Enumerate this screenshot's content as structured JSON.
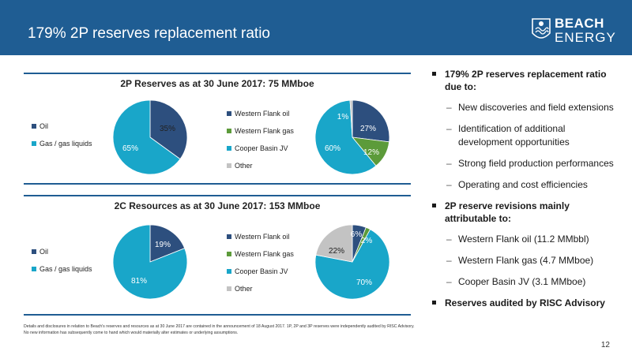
{
  "header": {
    "title": "179% 2P reserves replacement ratio"
  },
  "logo": {
    "word1": "BEACH",
    "word2": "ENERGY"
  },
  "colors": {
    "header_blue": "#1f5d93",
    "navy": "#2d4f7e",
    "teal": "#19a6c9",
    "green": "#5c9b3a",
    "grey": "#c3c3c3"
  },
  "reserves": {
    "title": "2P Reserves as at 30 June 2017: 75 MMboe",
    "left_legend": [
      "Oil",
      "Gas / gas liquids"
    ],
    "right_legend": [
      "Western Flank oil",
      "Western Flank gas",
      "Cooper Basin JV",
      "Other"
    ]
  },
  "resources": {
    "title": "2C Resources as at 30 June 2017: 153 MMboe",
    "left_legend": [
      "Oil",
      "Gas / gas liquids"
    ],
    "right_legend": [
      "Western Flank oil",
      "Western Flank gas",
      "Cooper Basin JV",
      "Other"
    ]
  },
  "chart_data": [
    {
      "type": "pie",
      "title": "2P Reserves as at 30 June 2017: 75 MMboe",
      "categories": [
        "Oil",
        "Gas / gas liquids"
      ],
      "values": [
        35,
        65
      ],
      "labels": [
        "35%",
        "65%"
      ]
    },
    {
      "type": "pie",
      "title": "2P Reserves as at 30 June 2017: 75 MMboe",
      "categories": [
        "Western Flank oil",
        "Western Flank gas",
        "Cooper Basin JV",
        "Other"
      ],
      "values": [
        27,
        12,
        60,
        1
      ],
      "labels": [
        "27%",
        "12%",
        "60%",
        "1%"
      ]
    },
    {
      "type": "pie",
      "title": "2C Resources as at 30 June 2017: 153 MMboe",
      "categories": [
        "Oil",
        "Gas / gas liquids"
      ],
      "values": [
        19,
        81
      ],
      "labels": [
        "19%",
        "81%"
      ]
    },
    {
      "type": "pie",
      "title": "2C Resources as at 30 June 2017: 153 MMboe",
      "categories": [
        "Western Flank oil",
        "Western Flank gas",
        "Cooper Basin JV",
        "Other"
      ],
      "values": [
        6,
        2,
        70,
        22
      ],
      "labels": [
        "6%",
        "2%",
        "70%",
        "22%"
      ]
    }
  ],
  "bullets": {
    "b1": "179% 2P reserves replacement ratio due to:",
    "b1_sub": [
      "New discoveries and field extensions",
      "Identification of additional development opportunities",
      "Strong field production performances",
      "Operating and cost efficiencies"
    ],
    "b2": "2P reserve revisions mainly attributable to:",
    "b2_sub": [
      "Western Flank oil (11.2 MMbbl)",
      "Western Flank gas (4.7 MMboe)",
      "Cooper Basin JV (3.1 MMboe)"
    ],
    "b3": "Reserves audited by RISC Advisory"
  },
  "footnote": "Details and disclosures in relation to Beach's reserves and resources as at 30 June 2017 are contained in the announcement of 18 August 2017. 1P, 2P and 3P reserves were independently audited by RISC Advisory. No new information has subsequently come to hand which would materially alter estimates or underlying assumptions.",
  "page_number": "12"
}
